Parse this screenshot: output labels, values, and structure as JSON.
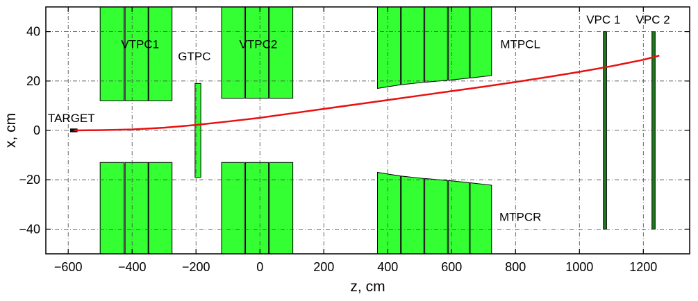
{
  "chart_data": {
    "type": "scatter",
    "xlabel": "z, cm",
    "ylabel": "x, cm",
    "xlim": [
      -670,
      1345
    ],
    "ylim": [
      -50,
      50
    ],
    "x_ticks": [
      -600,
      -400,
      -200,
      0,
      200,
      400,
      600,
      800,
      1000,
      1200
    ],
    "y_ticks": [
      -40,
      -20,
      0,
      20,
      40
    ],
    "x_tick_labels": [
      "−600",
      "−400",
      "−200",
      "0",
      "200",
      "400",
      "600",
      "800",
      "1000",
      "1200"
    ],
    "y_tick_labels": [
      "−40",
      "−20",
      "0",
      "20",
      "40"
    ],
    "grid": true,
    "colors": {
      "tpc_fill": "#33ff33",
      "vpc_fill": "#1f7a1f",
      "track": "#e81010",
      "target": "#111111",
      "grid": "#444444"
    },
    "labels": [
      {
        "text": "VTPC1",
        "x": -375,
        "y": 35
      },
      {
        "text": "GTPC",
        "x": -205,
        "y": 30
      },
      {
        "text": "VTPC2",
        "x": -5,
        "y": 35
      },
      {
        "text": "MTPCL",
        "x": 815,
        "y": 35
      },
      {
        "text": "MTPCR",
        "x": 815,
        "y": -35
      },
      {
        "text": "TARGET",
        "x": -590,
        "y": 5
      },
      {
        "text": "VPC 1",
        "x": 1075,
        "y": 45
      },
      {
        "text": "VPC 2",
        "x": 1230,
        "y": 45
      }
    ],
    "detectors": {
      "vtpc1_top": [
        [
          -500,
          12,
          -425,
          50
        ],
        [
          -422,
          12,
          -350,
          50
        ],
        [
          -348,
          12,
          -275,
          50
        ]
      ],
      "vtpc1_bottom": [
        [
          -500,
          -50,
          -425,
          -13
        ],
        [
          -422,
          -50,
          -350,
          -13
        ],
        [
          -348,
          -50,
          -275,
          -13
        ]
      ],
      "gtpc": [
        [
          -203,
          -19,
          -185,
          19
        ]
      ],
      "vtpc2_top": [
        [
          -120,
          13,
          -48,
          50
        ],
        [
          -45,
          13,
          27,
          50
        ],
        [
          30,
          13,
          103,
          50
        ]
      ],
      "vtpc2_bottom": [
        [
          -120,
          -50,
          -48,
          -13
        ],
        [
          -45,
          -50,
          27,
          -13
        ],
        [
          30,
          -50,
          103,
          -13
        ]
      ],
      "mtpcl": [
        [
          [
            368,
            17
          ],
          [
            440,
            18.5
          ],
          [
            440,
            50
          ],
          [
            368,
            50
          ]
        ],
        [
          [
            443,
            18.5
          ],
          [
            513,
            19.5
          ],
          [
            513,
            50
          ],
          [
            443,
            50
          ]
        ],
        [
          [
            516,
            19.5
          ],
          [
            587,
            20.3
          ],
          [
            587,
            50
          ],
          [
            516,
            50
          ]
        ],
        [
          [
            590,
            20.3
          ],
          [
            655,
            21.2
          ],
          [
            655,
            50
          ],
          [
            590,
            50
          ]
        ],
        [
          [
            658,
            21.2
          ],
          [
            725,
            22.2
          ],
          [
            725,
            50
          ],
          [
            658,
            50
          ]
        ]
      ],
      "mtpcr": [
        [
          [
            368,
            -17
          ],
          [
            440,
            -18.5
          ],
          [
            440,
            -50
          ],
          [
            368,
            -50
          ]
        ],
        [
          [
            443,
            -18.5
          ],
          [
            513,
            -19.5
          ],
          [
            513,
            -50
          ],
          [
            443,
            -50
          ]
        ],
        [
          [
            516,
            -19.5
          ],
          [
            587,
            -20.3
          ],
          [
            587,
            -50
          ],
          [
            516,
            -50
          ]
        ],
        [
          [
            590,
            -20.3
          ],
          [
            655,
            -21.2
          ],
          [
            655,
            -50
          ],
          [
            590,
            -50
          ]
        ],
        [
          [
            658,
            -21.2
          ],
          [
            725,
            -22.2
          ],
          [
            725,
            -50
          ],
          [
            658,
            -50
          ]
        ]
      ],
      "vpc1": [
        [
          1075,
          -40,
          1085,
          40
        ]
      ],
      "vpc2": [
        [
          1227,
          -40,
          1237,
          40
        ]
      ],
      "target": [
        [
          -593,
          -0.6,
          -572,
          0.6
        ]
      ]
    },
    "series": [
      {
        "x": [
          -580,
          -500,
          -400,
          -300,
          -200,
          -100,
          0,
          100,
          200,
          300,
          400,
          500,
          600,
          700,
          800,
          900,
          1000,
          1100,
          1200,
          1250
        ],
        "y": [
          0,
          0.12,
          0.4,
          1.1,
          2.2,
          3.6,
          5.1,
          6.9,
          8.7,
          10.5,
          12.3,
          14.1,
          15.9,
          17.7,
          19.6,
          21.6,
          23.7,
          26.0,
          28.6,
          30.3
        ]
      }
    ]
  }
}
